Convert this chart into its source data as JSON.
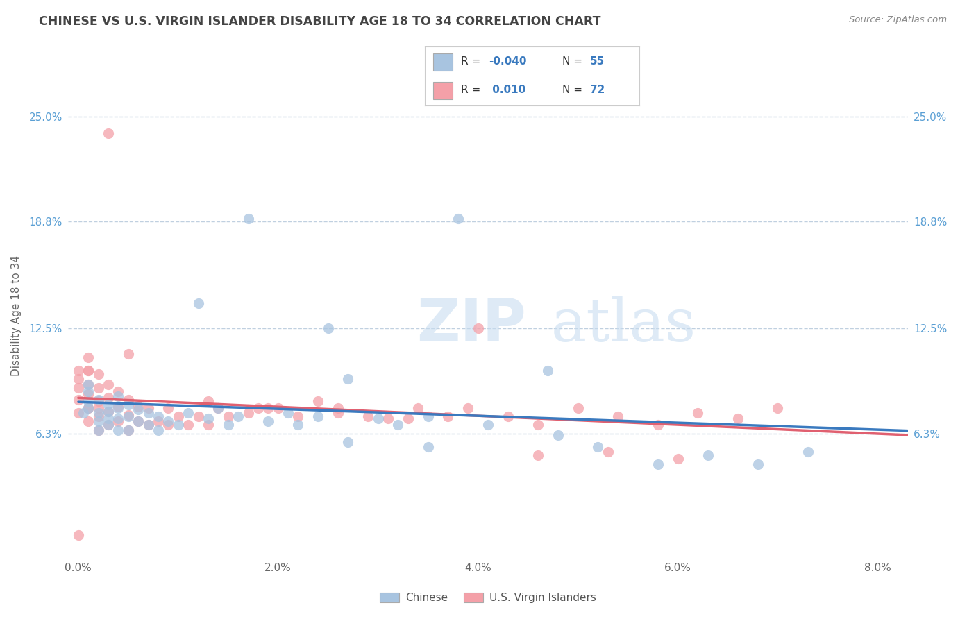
{
  "title": "CHINESE VS U.S. VIRGIN ISLANDER DISABILITY AGE 18 TO 34 CORRELATION CHART",
  "source": "Source: ZipAtlas.com",
  "ylabel": "Disability Age 18 to 34",
  "xlim": [
    -0.001,
    0.083
  ],
  "ylim": [
    -0.01,
    0.275
  ],
  "xtick_labels": [
    "0.0%",
    "2.0%",
    "4.0%",
    "6.0%",
    "8.0%"
  ],
  "xtick_vals": [
    0.0,
    0.02,
    0.04,
    0.06,
    0.08
  ],
  "ytick_labels": [
    "6.3%",
    "12.5%",
    "18.8%",
    "25.0%"
  ],
  "ytick_vals": [
    0.063,
    0.125,
    0.188,
    0.25
  ],
  "color_chinese": "#a8c4e0",
  "color_usvi": "#f4a0a8",
  "color_trendline_chinese": "#3a7abf",
  "color_trendline_usvi": "#e06070",
  "watermark_zip": "ZIP",
  "watermark_atlas": "atlas",
  "background_color": "#ffffff",
  "grid_color": "#c0d0e0",
  "title_color": "#444444",
  "source_color": "#888888",
  "tick_color_y": "#5a9fd4",
  "tick_color_x": "#666666",
  "legend_text_color": "#333333",
  "legend_n_color": "#3a7abf",
  "chinese_x": [
    0.0005,
    0.001,
    0.001,
    0.001,
    0.001,
    0.002,
    0.002,
    0.002,
    0.002,
    0.003,
    0.003,
    0.003,
    0.003,
    0.004,
    0.004,
    0.004,
    0.004,
    0.005,
    0.005,
    0.005,
    0.006,
    0.006,
    0.007,
    0.007,
    0.008,
    0.008,
    0.009,
    0.01,
    0.011,
    0.012,
    0.013,
    0.014,
    0.015,
    0.016,
    0.017,
    0.019,
    0.021,
    0.022,
    0.024,
    0.025,
    0.027,
    0.03,
    0.032,
    0.035,
    0.038,
    0.041,
    0.047,
    0.052,
    0.058,
    0.063,
    0.048,
    0.035,
    0.027,
    0.068,
    0.073
  ],
  "chinese_y": [
    0.075,
    0.082,
    0.088,
    0.078,
    0.092,
    0.07,
    0.075,
    0.083,
    0.065,
    0.072,
    0.08,
    0.068,
    0.076,
    0.065,
    0.072,
    0.078,
    0.085,
    0.065,
    0.073,
    0.08,
    0.07,
    0.077,
    0.068,
    0.075,
    0.065,
    0.073,
    0.07,
    0.068,
    0.075,
    0.14,
    0.072,
    0.078,
    0.068,
    0.073,
    0.19,
    0.07,
    0.075,
    0.068,
    0.073,
    0.125,
    0.095,
    0.072,
    0.068,
    0.073,
    0.19,
    0.068,
    0.1,
    0.055,
    0.045,
    0.05,
    0.062,
    0.055,
    0.058,
    0.045,
    0.052
  ],
  "usvi_x": [
    0.0,
    0.0,
    0.0,
    0.0,
    0.0,
    0.001,
    0.001,
    0.001,
    0.001,
    0.001,
    0.001,
    0.001,
    0.002,
    0.002,
    0.002,
    0.002,
    0.002,
    0.003,
    0.003,
    0.003,
    0.003,
    0.004,
    0.004,
    0.004,
    0.005,
    0.005,
    0.005,
    0.006,
    0.006,
    0.007,
    0.007,
    0.008,
    0.009,
    0.01,
    0.011,
    0.012,
    0.013,
    0.014,
    0.015,
    0.017,
    0.018,
    0.02,
    0.022,
    0.024,
    0.026,
    0.029,
    0.031,
    0.034,
    0.037,
    0.04,
    0.043,
    0.046,
    0.05,
    0.054,
    0.058,
    0.062,
    0.066,
    0.07,
    0.003,
    0.001,
    0.0,
    0.002,
    0.005,
    0.009,
    0.013,
    0.019,
    0.026,
    0.033,
    0.039,
    0.046,
    0.053,
    0.06
  ],
  "usvi_y": [
    0.083,
    0.09,
    0.095,
    0.1,
    0.075,
    0.07,
    0.078,
    0.086,
    0.092,
    0.1,
    0.108,
    0.078,
    0.065,
    0.073,
    0.082,
    0.09,
    0.098,
    0.068,
    0.076,
    0.084,
    0.092,
    0.07,
    0.079,
    0.088,
    0.065,
    0.074,
    0.083,
    0.07,
    0.079,
    0.068,
    0.078,
    0.07,
    0.068,
    0.073,
    0.068,
    0.073,
    0.068,
    0.078,
    0.073,
    0.075,
    0.078,
    0.078,
    0.073,
    0.082,
    0.078,
    0.073,
    0.072,
    0.078,
    0.073,
    0.125,
    0.073,
    0.068,
    0.078,
    0.073,
    0.068,
    0.075,
    0.072,
    0.078,
    0.24,
    0.1,
    0.003,
    0.078,
    0.11,
    0.078,
    0.082,
    0.078,
    0.075,
    0.072,
    0.078,
    0.05,
    0.052,
    0.048
  ]
}
